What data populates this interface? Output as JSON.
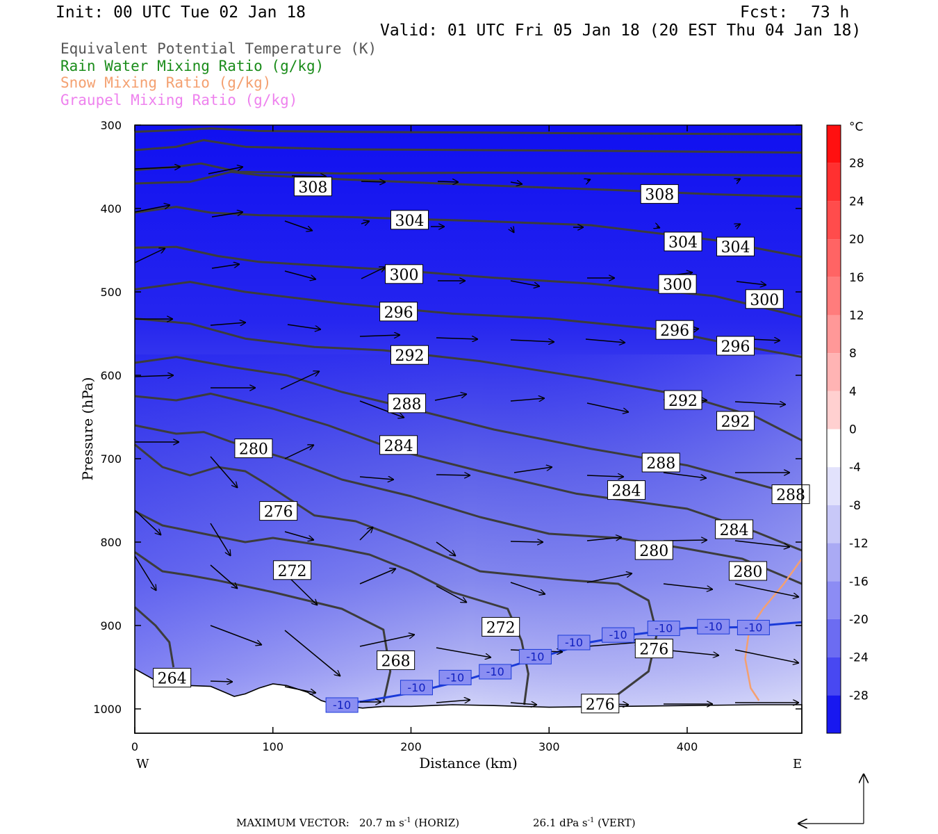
{
  "header": {
    "init": "Init: 00 UTC Tue 02 Jan 18",
    "fcst_label": "Fcst:",
    "fcst_value": "73 h",
    "valid": "Valid: 01 UTC Fri 05 Jan 18 (20 EST Thu 04 Jan 18)"
  },
  "legend": [
    {
      "label": "Equivalent Potential Temperature (K)",
      "color": "#555555"
    },
    {
      "label": "Rain Water Mixing Ratio (g/kg)",
      "color": "#1a8c1a"
    },
    {
      "label": "Snow Mixing Ratio (g/kg)",
      "color": "#f4a070"
    },
    {
      "label": "Graupel Mixing Ratio (g/kg)",
      "color": "#ee82ee"
    }
  ],
  "footer": {
    "max_label": "MAXIMUM VECTOR:",
    "horiz_value": "20.7 m s",
    "horiz_exp": "-1",
    "horiz_unit": "(HORIZ)",
    "vert_value": "26.1 dPa s",
    "vert_exp": "-1",
    "vert_unit": "(VERT)"
  },
  "chart_data": {
    "type": "cross-section",
    "xlabel": "Distance (km)",
    "ylabel": "Pressure (hPa)",
    "xlim": [
      0,
      483
    ],
    "ylim": [
      1030,
      300
    ],
    "x_ticks": [
      "0",
      "100",
      "200",
      "300",
      "400"
    ],
    "y_ticks": [
      "300",
      "400",
      "500",
      "600",
      "700",
      "800",
      "900",
      "1000"
    ],
    "x_end_labels": {
      "left": "W",
      "right": "E"
    },
    "colorbar": {
      "unit": "°C",
      "ticks": [
        "28",
        "24",
        "20",
        "16",
        "12",
        "8",
        "4",
        "0",
        "-4",
        "-8",
        "-12",
        "-16",
        "-20",
        "-24",
        "-28"
      ]
    },
    "theta_e_labels": [
      {
        "text": "308",
        "x": 129,
        "p": 374
      },
      {
        "text": "308",
        "x": 380,
        "p": 383
      },
      {
        "text": "304",
        "x": 199,
        "p": 414
      },
      {
        "text": "304",
        "x": 397,
        "p": 440
      },
      {
        "text": "304",
        "x": 435,
        "p": 446
      },
      {
        "text": "300",
        "x": 195,
        "p": 479
      },
      {
        "text": "300",
        "x": 393,
        "p": 491
      },
      {
        "text": "300",
        "x": 456,
        "p": 509
      },
      {
        "text": "296",
        "x": 191,
        "p": 524
      },
      {
        "text": "296",
        "x": 391,
        "p": 546
      },
      {
        "text": "296",
        "x": 435,
        "p": 565
      },
      {
        "text": "292",
        "x": 199,
        "p": 576
      },
      {
        "text": "292",
        "x": 397,
        "p": 630
      },
      {
        "text": "292",
        "x": 435,
        "p": 655
      },
      {
        "text": "288",
        "x": 197,
        "p": 634
      },
      {
        "text": "288",
        "x": 381,
        "p": 705
      },
      {
        "text": "288",
        "x": 475,
        "p": 743
      },
      {
        "text": "284",
        "x": 191,
        "p": 684
      },
      {
        "text": "284",
        "x": 356,
        "p": 738
      },
      {
        "text": "284",
        "x": 434,
        "p": 785
      },
      {
        "text": "280",
        "x": 86,
        "p": 688
      },
      {
        "text": "280",
        "x": 376,
        "p": 810
      },
      {
        "text": "280",
        "x": 444,
        "p": 835
      },
      {
        "text": "276",
        "x": 104,
        "p": 763
      },
      {
        "text": "276",
        "x": 376,
        "p": 928
      },
      {
        "text": "276",
        "x": 337,
        "p": 994
      },
      {
        "text": "272",
        "x": 114,
        "p": 834
      },
      {
        "text": "272",
        "x": 265,
        "p": 902
      },
      {
        "text": "268",
        "x": 189,
        "p": 942
      },
      {
        "text": "264",
        "x": 27,
        "p": 963
      }
    ],
    "isotherm_labels": [
      {
        "text": "-10",
        "x": 150,
        "p": 995
      },
      {
        "text": "-10",
        "x": 204,
        "p": 974
      },
      {
        "text": "-10",
        "x": 232,
        "p": 962
      },
      {
        "text": "-10",
        "x": 261,
        "p": 955
      },
      {
        "text": "-10",
        "x": 290,
        "p": 937
      },
      {
        "text": "-10",
        "x": 318,
        "p": 920
      },
      {
        "text": "-10",
        "x": 350,
        "p": 911
      },
      {
        "text": "-10",
        "x": 383,
        "p": 903
      },
      {
        "text": "-10",
        "x": 419,
        "p": 901
      },
      {
        "text": "-10",
        "x": 448,
        "p": 902
      }
    ]
  }
}
